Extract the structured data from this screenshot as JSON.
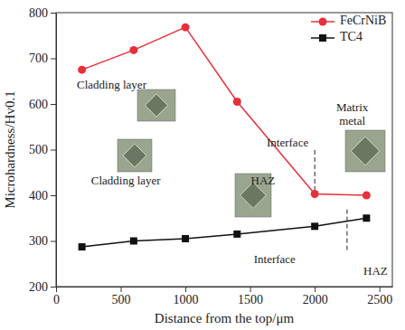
{
  "chart_data": {
    "type": "line",
    "x_label": "Distance from the top/μm",
    "y_label": "Microhardness/Hv0.1",
    "x": [
      200,
      600,
      1000,
      1400,
      2000,
      2400
    ],
    "series": [
      {
        "name": "FeCrNiB",
        "color": "#e8303a",
        "marker": "circle",
        "values": [
          675,
          718,
          768,
          605,
          403,
          400
        ]
      },
      {
        "name": "TC4",
        "color": "#111111",
        "marker": "square",
        "values": [
          287,
          300,
          305,
          315,
          332,
          350
        ]
      }
    ],
    "xlim": [
      0,
      2600
    ],
    "xticks": [
      0,
      500,
      1000,
      1500,
      2000,
      2500
    ],
    "ylim": [
      200,
      800
    ],
    "yticks": [
      200,
      300,
      400,
      500,
      600,
      700,
      800
    ],
    "legend": "upper right",
    "annotations": [
      {
        "text": "Cladding layer",
        "x": 430,
        "y": 640
      },
      {
        "text": "Interface",
        "x": 1790,
        "y": 512
      },
      {
        "text": "Matrix",
        "x": 2290,
        "y": 590
      },
      {
        "text": "metal",
        "x": 2290,
        "y": 560
      },
      {
        "text": "Cladding layer",
        "x": 540,
        "y": 430
      },
      {
        "text": "HAZ",
        "x": 1600,
        "y": 430
      },
      {
        "text": "Interface",
        "x": 1690,
        "y": 258
      },
      {
        "text": "HAZ",
        "x": 2470,
        "y": 232
      }
    ],
    "reference_lines": [
      {
        "x": 2000,
        "y": [
          410,
          505
        ]
      },
      {
        "x": 2250,
        "y": [
          280,
          372
        ]
      }
    ]
  }
}
